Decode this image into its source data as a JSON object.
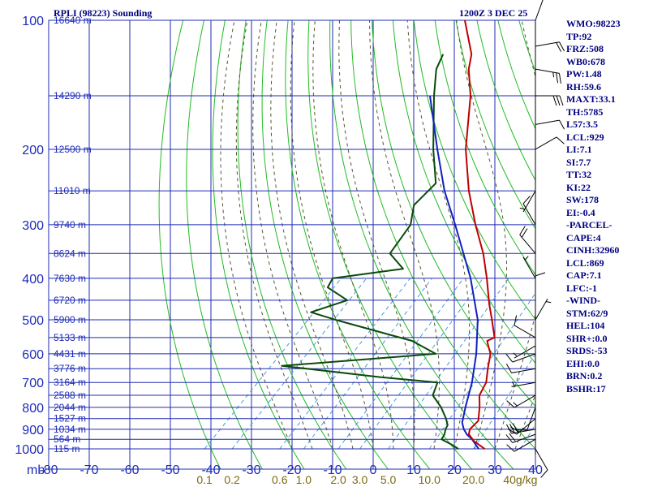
{
  "header": {
    "station": "RPLI (98223) Sounding",
    "time": "1200Z  3 DEC 25"
  },
  "indices": [
    "WMO:98223",
    "TP:92",
    "FRZ:508",
    "WB0:678",
    "PW:1.48",
    "RH:59.6",
    "MAXT:33.1",
    "TH:5785",
    "L57:3.5",
    "LCL:929",
    "LI:7.1",
    "SI:7.7",
    "TT:32",
    "KI:22",
    "SW:178",
    "EI:-0.4",
    "-PARCEL-",
    "CAPE:4",
    "CINH:32960",
    "LCL:869",
    "CAP:7.1",
    "LFC:-1",
    "-WIND-",
    "STM:62/9",
    "HEL:104",
    "SHR+:0.0",
    "SRDS:-53",
    "EHI:0.0",
    "BRN:0.2",
    "BSHR:17"
  ],
  "colors": {
    "grid": "#1f2bb0",
    "isotherm": "#1f2bb0",
    "dry_adiabat": "#22bb22",
    "moist_adiabat": "#555533",
    "mixing_ratio": "#4a9adf",
    "temperature": "#c00000",
    "dewpoint": "#0a4a0a",
    "parcel": "#1020c0",
    "wind": "#000000"
  },
  "chart_data": {
    "type": "skew-t",
    "title": "RPLI (98223) Sounding 1200Z 3 DEC 25",
    "pressure_levels_mb": [
      100,
      200,
      300,
      400,
      500,
      600,
      700,
      800,
      900,
      1000
    ],
    "pressure_axis_unit": "mb",
    "temperature_ticks_c": [
      -80,
      -70,
      -60,
      -50,
      -40,
      -30,
      -20,
      -10,
      0,
      10,
      20,
      30,
      40
    ],
    "temperature_axis_labels": [
      "-80",
      "-70",
      "-60",
      "-50",
      "-40",
      "-30",
      "-20",
      "-10",
      "0",
      "10",
      "20",
      "30",
      "40"
    ],
    "height_labels": [
      {
        "p": 100,
        "text": "16640 m"
      },
      {
        "p": 150,
        "text": "14290 m"
      },
      {
        "p": 200,
        "text": "12500 m"
      },
      {
        "p": 250,
        "text": "11010 m"
      },
      {
        "p": 300,
        "text": "9740 m"
      },
      {
        "p": 350,
        "text": "8624 m"
      },
      {
        "p": 400,
        "text": "7630 m"
      },
      {
        "p": 450,
        "text": "6720 m"
      },
      {
        "p": 500,
        "text": "5900 m"
      },
      {
        "p": 550,
        "text": "5133 m"
      },
      {
        "p": 600,
        "text": "4431 m"
      },
      {
        "p": 650,
        "text": "3776 m"
      },
      {
        "p": 700,
        "text": "3164 m"
      },
      {
        "p": 750,
        "text": "2588 m"
      },
      {
        "p": 800,
        "text": "2044 m"
      },
      {
        "p": 850,
        "text": "1527 m"
      },
      {
        "p": 900,
        "text": "1034 m"
      },
      {
        "p": 950,
        "text": "564 m"
      },
      {
        "p": 1000,
        "text": "115 m"
      }
    ],
    "mixing_ratio_labels": [
      {
        "w": 0.1,
        "text": "0.1"
      },
      {
        "w": 0.2,
        "text": "0.2"
      },
      {
        "w": 0.6,
        "text": "0.6"
      },
      {
        "w": 1.0,
        "text": "1.0"
      },
      {
        "w": 2.0,
        "text": "2.0"
      },
      {
        "w": 3.0,
        "text": "3.0"
      },
      {
        "w": 5.0,
        "text": "5.0"
      },
      {
        "w": 10.0,
        "text": "10.0"
      },
      {
        "w": 20.0,
        "text": "20.0"
      },
      {
        "w": 40.0,
        "text": "40g/kg"
      }
    ],
    "temperature": [
      {
        "p": 1000,
        "t": 27.5
      },
      {
        "p": 960,
        "t": 23
      },
      {
        "p": 925,
        "t": 20
      },
      {
        "p": 900,
        "t": 19
      },
      {
        "p": 860,
        "t": 19
      },
      {
        "p": 850,
        "t": 18.5
      },
      {
        "p": 800,
        "t": 16
      },
      {
        "p": 750,
        "t": 13
      },
      {
        "p": 700,
        "t": 11.5
      },
      {
        "p": 650,
        "t": 8.5
      },
      {
        "p": 600,
        "t": 5.5
      },
      {
        "p": 575,
        "t": 3
      },
      {
        "p": 560,
        "t": 1.5
      },
      {
        "p": 550,
        "t": 2.5
      },
      {
        "p": 500,
        "t": -2.5
      },
      {
        "p": 460,
        "t": -7
      },
      {
        "p": 400,
        "t": -14
      },
      {
        "p": 350,
        "t": -21
      },
      {
        "p": 300,
        "t": -30
      },
      {
        "p": 250,
        "t": -40
      },
      {
        "p": 200,
        "t": -51
      },
      {
        "p": 150,
        "t": -63
      },
      {
        "p": 130,
        "t": -70
      },
      {
        "p": 120,
        "t": -73
      },
      {
        "p": 100,
        "t": -83
      }
    ],
    "dewpoint": [
      {
        "p": 1000,
        "t": 21
      },
      {
        "p": 975,
        "t": 18
      },
      {
        "p": 950,
        "t": 14.5
      },
      {
        "p": 925,
        "t": 14
      },
      {
        "p": 900,
        "t": 13
      },
      {
        "p": 880,
        "t": 12.5
      },
      {
        "p": 850,
        "t": 10.5
      },
      {
        "p": 800,
        "t": 6.5
      },
      {
        "p": 750,
        "t": 1.5
      },
      {
        "p": 700,
        "t": -0.5
      },
      {
        "p": 680,
        "t": -16
      },
      {
        "p": 640,
        "t": -43
      },
      {
        "p": 600,
        "t": -8
      },
      {
        "p": 560,
        "t": -17
      },
      {
        "p": 500,
        "t": -41
      },
      {
        "p": 480,
        "t": -49
      },
      {
        "p": 450,
        "t": -43
      },
      {
        "p": 420,
        "t": -51
      },
      {
        "p": 400,
        "t": -52
      },
      {
        "p": 380,
        "t": -37
      },
      {
        "p": 350,
        "t": -44
      },
      {
        "p": 300,
        "t": -46
      },
      {
        "p": 270,
        "t": -50
      },
      {
        "p": 240,
        "t": -50
      },
      {
        "p": 200,
        "t": -59
      },
      {
        "p": 150,
        "t": -72
      },
      {
        "p": 130,
        "t": -78
      },
      {
        "p": 120,
        "t": -80
      }
    ],
    "parcel": [
      {
        "p": 1000,
        "t": 26
      },
      {
        "p": 950,
        "t": 22
      },
      {
        "p": 925,
        "t": 19.5
      },
      {
        "p": 900,
        "t": 17.5
      },
      {
        "p": 869,
        "t": 15.5
      },
      {
        "p": 800,
        "t": 12.5
      },
      {
        "p": 700,
        "t": 8
      },
      {
        "p": 600,
        "t": 2
      },
      {
        "p": 500,
        "t": -6
      },
      {
        "p": 400,
        "t": -18
      },
      {
        "p": 300,
        "t": -35
      },
      {
        "p": 250,
        "t": -46
      },
      {
        "p": 200,
        "t": -58
      },
      {
        "p": 150,
        "t": -73
      }
    ],
    "wind_barbs": [
      {
        "p": 1000,
        "dir": 150,
        "kt": 10
      },
      {
        "p": 950,
        "dir": 240,
        "kt": 10
      },
      {
        "p": 925,
        "dir": 250,
        "kt": 20
      },
      {
        "p": 900,
        "dir": 260,
        "kt": 30
      },
      {
        "p": 850,
        "dir": 230,
        "kt": 20
      },
      {
        "p": 800,
        "dir": 200,
        "kt": 10
      },
      {
        "p": 750,
        "dir": 240,
        "kt": 15
      },
      {
        "p": 700,
        "dir": 260,
        "kt": 5
      },
      {
        "p": 650,
        "dir": 260,
        "kt": 10
      },
      {
        "p": 600,
        "dir": 250,
        "kt": 10
      },
      {
        "p": 575,
        "dir": 240,
        "kt": 5
      },
      {
        "p": 550,
        "dir": 300,
        "kt": 10
      },
      {
        "p": 500,
        "dir": 30,
        "kt": 5
      },
      {
        "p": 450,
        "dir": 0,
        "kt": 10
      },
      {
        "p": 400,
        "dir": 330,
        "kt": 5
      },
      {
        "p": 350,
        "dir": 320,
        "kt": 20
      },
      {
        "p": 300,
        "dir": 330,
        "kt": 10
      },
      {
        "p": 250,
        "dir": 210,
        "kt": 5
      },
      {
        "p": 200,
        "dir": 60,
        "kt": 10
      },
      {
        "p": 175,
        "dir": 80,
        "kt": 10
      },
      {
        "p": 150,
        "dir": 90,
        "kt": 30
      },
      {
        "p": 130,
        "dir": 100,
        "kt": 25
      },
      {
        "p": 115,
        "dir": 80,
        "kt": 20
      },
      {
        "p": 100,
        "dir": 20,
        "kt": 10
      }
    ]
  }
}
